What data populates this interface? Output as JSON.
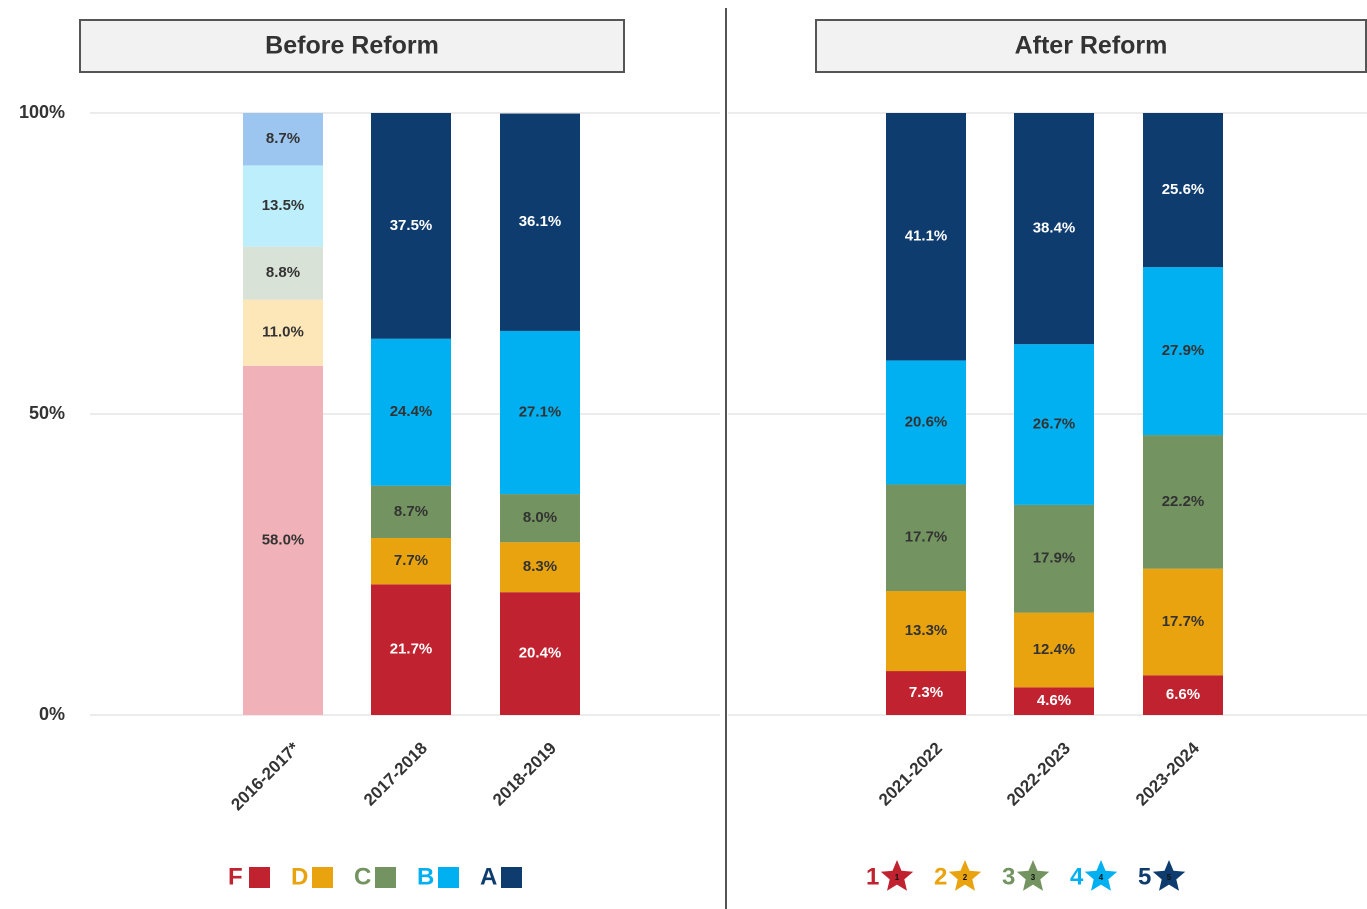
{
  "chart_data": [
    {
      "type": "bar",
      "stacked": true,
      "title": "Before Reform",
      "categories": [
        "2016-2017*",
        "2017-2018",
        "2018-2019"
      ],
      "ylim": [
        0,
        100
      ],
      "yticks": [
        {
          "value": 0,
          "label": "0%"
        },
        {
          "value": 50,
          "label": "50%"
        },
        {
          "value": 100,
          "label": "100%"
        }
      ],
      "grid": true,
      "legend_marker": "square",
      "series": [
        {
          "name": "F",
          "color": "#c0232f",
          "colors": [
            "#f0b2b8",
            "#c0232f",
            "#c0232f"
          ],
          "values": [
            58.0,
            21.7,
            20.4
          ],
          "value_labels": [
            "58.0%",
            "21.7%",
            "20.4%"
          ]
        },
        {
          "name": "D",
          "color": "#e9a30f",
          "colors": [
            "#fde6b8",
            "#e9a30f",
            "#e9a30f"
          ],
          "values": [
            11.0,
            7.7,
            8.3
          ],
          "value_labels": [
            "11.0%",
            "7.7%",
            "8.3%"
          ]
        },
        {
          "name": "C",
          "color": "#739460",
          "colors": [
            "#d9e2d6",
            "#739460",
            "#739460"
          ],
          "values": [
            8.8,
            8.7,
            8.0
          ],
          "value_labels": [
            "8.8%",
            "8.7%",
            "8.0%"
          ]
        },
        {
          "name": "B",
          "color": "#00b0f0",
          "colors": [
            "#bdeefc",
            "#00b0f0",
            "#00b0f0"
          ],
          "values": [
            13.5,
            24.4,
            27.1
          ],
          "value_labels": [
            "13.5%",
            "24.4%",
            "27.1%"
          ]
        },
        {
          "name": "A",
          "color": "#0e3c6e",
          "colors": [
            "#9cc6f0",
            "#0e3c6e",
            "#0e3c6e"
          ],
          "values": [
            8.7,
            37.5,
            36.1
          ],
          "value_labels": [
            "8.7%",
            "37.5%",
            "36.1%"
          ]
        }
      ]
    },
    {
      "type": "bar",
      "stacked": true,
      "title": "After Reform",
      "categories": [
        "2021-2022",
        "2022-2023",
        "2023-2024"
      ],
      "ylim": [
        0,
        100
      ],
      "yticks": [
        {
          "value": 0,
          "label": "0%"
        },
        {
          "value": 50,
          "label": "50%"
        },
        {
          "value": 100,
          "label": "100%"
        }
      ],
      "grid": true,
      "legend_marker": "star",
      "series": [
        {
          "name": "1",
          "color": "#c0232f",
          "values": [
            7.3,
            4.6,
            6.6
          ],
          "value_labels": [
            "7.3%",
            "4.6%",
            "6.6%"
          ]
        },
        {
          "name": "2",
          "color": "#e9a30f",
          "values": [
            13.3,
            12.4,
            17.7
          ],
          "value_labels": [
            "13.3%",
            "12.4%",
            "17.7%"
          ]
        },
        {
          "name": "3",
          "color": "#739460",
          "values": [
            17.7,
            17.9,
            22.2
          ],
          "value_labels": [
            "17.7%",
            "17.9%",
            "22.2%"
          ]
        },
        {
          "name": "4",
          "color": "#00b0f0",
          "values": [
            20.6,
            26.7,
            27.9
          ],
          "value_labels": [
            "20.6%",
            "26.7%",
            "27.9%"
          ]
        },
        {
          "name": "5",
          "color": "#0e3c6e",
          "values": [
            41.1,
            38.4,
            25.6
          ],
          "value_labels": [
            "41.1%",
            "38.4%",
            "25.6%"
          ]
        }
      ]
    }
  ]
}
